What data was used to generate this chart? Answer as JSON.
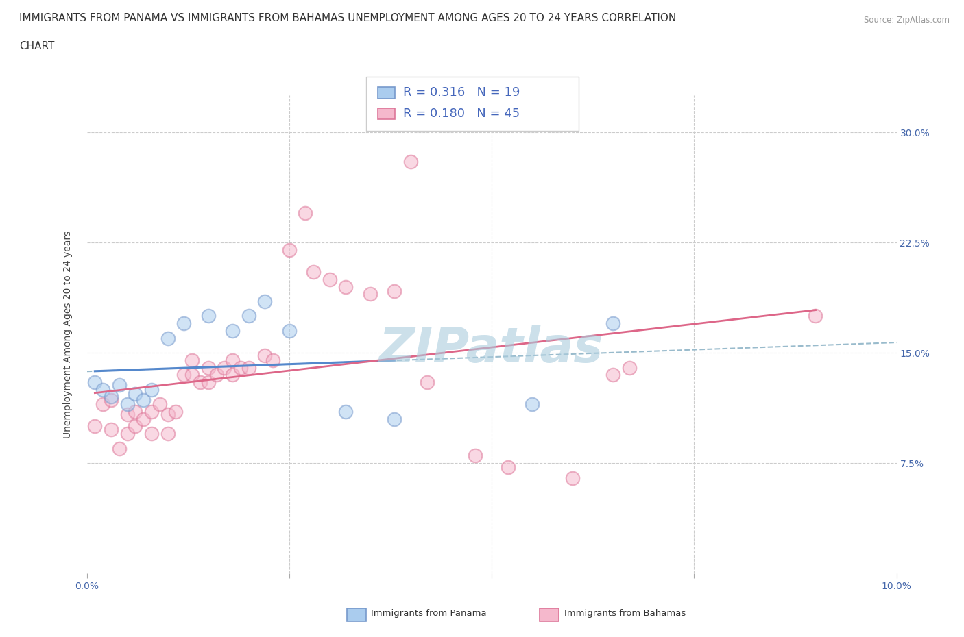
{
  "title_line1": "IMMIGRANTS FROM PANAMA VS IMMIGRANTS FROM BAHAMAS UNEMPLOYMENT AMONG AGES 20 TO 24 YEARS CORRELATION",
  "title_line2": "CHART",
  "source_text": "Source: ZipAtlas.com",
  "ylabel": "Unemployment Among Ages 20 to 24 years",
  "xlim": [
    0.0,
    0.1
  ],
  "ylim": [
    0.0,
    0.325
  ],
  "xticks": [
    0.0,
    0.025,
    0.05,
    0.075,
    0.1
  ],
  "xticklabels": [
    "0.0%",
    "",
    "",
    "",
    "10.0%"
  ],
  "yticks": [
    0.0,
    0.075,
    0.15,
    0.225,
    0.3
  ],
  "yticklabels": [
    "",
    "7.5%",
    "15.0%",
    "22.5%",
    "30.0%"
  ],
  "background_color": "#ffffff",
  "grid_color": "#cccccc",
  "watermark_text": "ZIPatlas",
  "watermark_color": "#aaccdd",
  "panama_fill_color": "#aaccee",
  "bahamas_fill_color": "#f5b8cc",
  "panama_edge_color": "#7799cc",
  "bahamas_edge_color": "#dd7799",
  "panama_line_color": "#5588cc",
  "bahamas_line_color": "#dd6688",
  "dashed_line_color": "#99bbcc",
  "legend_label_panama": "Immigrants from Panama",
  "legend_label_bahamas": "Immigrants from Bahamas",
  "R_panama": 0.316,
  "N_panama": 19,
  "R_bahamas": 0.18,
  "N_bahamas": 45,
  "panama_x": [
    0.001,
    0.002,
    0.003,
    0.004,
    0.005,
    0.006,
    0.007,
    0.008,
    0.01,
    0.012,
    0.015,
    0.018,
    0.02,
    0.022,
    0.025,
    0.032,
    0.038,
    0.055,
    0.065
  ],
  "panama_y": [
    0.13,
    0.125,
    0.12,
    0.128,
    0.115,
    0.122,
    0.118,
    0.125,
    0.16,
    0.17,
    0.175,
    0.165,
    0.175,
    0.185,
    0.165,
    0.11,
    0.105,
    0.115,
    0.17
  ],
  "bahamas_x": [
    0.001,
    0.002,
    0.003,
    0.003,
    0.004,
    0.005,
    0.005,
    0.006,
    0.006,
    0.007,
    0.008,
    0.008,
    0.009,
    0.01,
    0.01,
    0.011,
    0.012,
    0.013,
    0.013,
    0.014,
    0.015,
    0.015,
    0.016,
    0.017,
    0.018,
    0.018,
    0.019,
    0.02,
    0.022,
    0.023,
    0.025,
    0.027,
    0.028,
    0.03,
    0.032,
    0.035,
    0.038,
    0.04,
    0.042,
    0.048,
    0.052,
    0.06,
    0.065,
    0.067,
    0.09
  ],
  "bahamas_y": [
    0.1,
    0.115,
    0.118,
    0.098,
    0.085,
    0.095,
    0.108,
    0.1,
    0.11,
    0.105,
    0.095,
    0.11,
    0.115,
    0.108,
    0.095,
    0.11,
    0.135,
    0.145,
    0.135,
    0.13,
    0.13,
    0.14,
    0.135,
    0.14,
    0.145,
    0.135,
    0.14,
    0.14,
    0.148,
    0.145,
    0.22,
    0.245,
    0.205,
    0.2,
    0.195,
    0.19,
    0.192,
    0.28,
    0.13,
    0.08,
    0.072,
    0.065,
    0.135,
    0.14,
    0.175
  ],
  "title_fontsize": 11,
  "axis_label_fontsize": 10,
  "tick_fontsize": 10,
  "legend_fontsize": 13,
  "marker_size": 200,
  "marker_alpha": 0.55,
  "marker_linewidth": 1.5
}
